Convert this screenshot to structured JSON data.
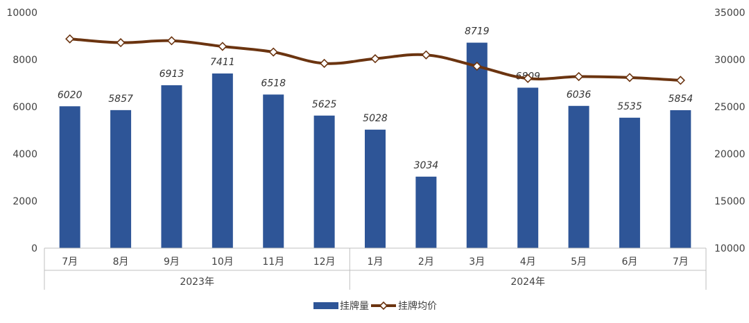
{
  "chart_data": {
    "type": "bar+line",
    "groups": [
      {
        "label": "2023年",
        "categories": [
          "7月",
          "8月",
          "9月",
          "10月",
          "11月",
          "12月"
        ]
      },
      {
        "label": "2024年",
        "categories": [
          "1月",
          "2月",
          "3月",
          "4月",
          "5月",
          "6月",
          "7月"
        ]
      }
    ],
    "series": [
      {
        "name": "挂牌量",
        "kind": "bar",
        "axis": "left",
        "color": "#2E5597",
        "values": [
          6020,
          5857,
          6913,
          7411,
          6518,
          5625,
          5028,
          3034,
          8719,
          6809,
          6036,
          5535,
          5854
        ],
        "labels": [
          "6020",
          "5857",
          "6913",
          "7411",
          "6518",
          "5625",
          "5028",
          "3034",
          "8719",
          "6809",
          "6036",
          "5535",
          "5854"
        ]
      },
      {
        "name": "挂牌均价",
        "kind": "line",
        "axis": "right",
        "color": "#6B3410",
        "marker": "diamond",
        "values": [
          32200,
          31800,
          32000,
          31400,
          30800,
          29600,
          30100,
          30500,
          29300,
          28000,
          28200,
          28100,
          27800
        ]
      }
    ],
    "y_left": {
      "min": 0,
      "max": 10000,
      "ticks": [
        0,
        2000,
        4000,
        6000,
        8000,
        10000
      ],
      "tick_labels": [
        "0",
        "2000",
        "4000",
        "6000",
        "8000",
        "10000"
      ]
    },
    "y_right": {
      "min": 10000,
      "max": 35000,
      "ticks": [
        10000,
        15000,
        20000,
        25000,
        30000,
        35000
      ],
      "tick_labels": [
        "10000",
        "15000",
        "20000",
        "25000",
        "30000",
        "35000"
      ]
    },
    "legend_position": "bottom-center",
    "grid": false
  }
}
